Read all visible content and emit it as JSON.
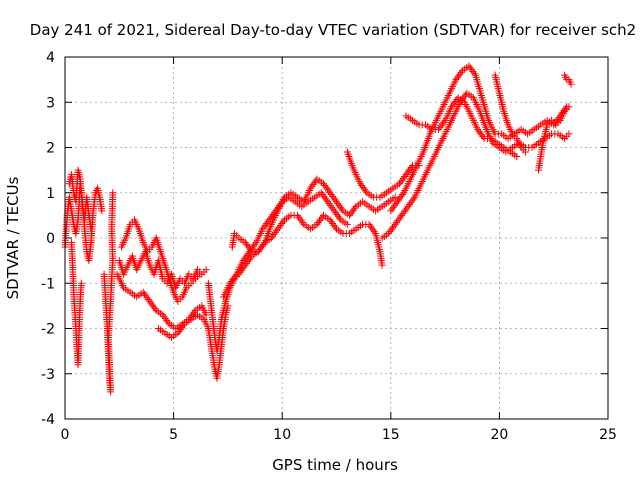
{
  "chart_data": {
    "type": "scatter",
    "title": "Day 241 of 2021, Sidereal Day-to-day VTEC variation (SDTVAR) for receiver sch2",
    "xlabel": "GPS time / hours",
    "ylabel": "SDTVAR / TECUs",
    "xlim": [
      0,
      25
    ],
    "ylim": [
      -4,
      4
    ],
    "x_ticks": [
      "0",
      "5",
      "10",
      "15",
      "20",
      "25"
    ],
    "y_ticks": [
      "-4",
      "-3",
      "-2",
      "-1",
      "0",
      "1",
      "2",
      "3",
      "4"
    ],
    "grid": true,
    "marker": "+",
    "series_color": "#ff0000",
    "tracks": [
      [
        [
          0.0,
          -0.2
        ],
        [
          0.1,
          0.5
        ],
        [
          0.2,
          0.9
        ],
        [
          0.3,
          0.6
        ],
        [
          0.4,
          0.3
        ],
        [
          0.5,
          0.1
        ],
        [
          0.6,
          0.4
        ],
        [
          0.7,
          1.2
        ],
        [
          0.8,
          0.8
        ],
        [
          0.9,
          0.2
        ],
        [
          1.0,
          -0.3
        ],
        [
          1.1,
          -0.5
        ],
        [
          1.2,
          -0.1
        ],
        [
          1.3,
          0.6
        ],
        [
          1.4,
          1.0
        ],
        [
          1.5,
          1.1
        ],
        [
          1.6,
          0.9
        ],
        [
          1.7,
          0.6
        ]
      ],
      [
        [
          0.2,
          1.2
        ],
        [
          0.3,
          1.4
        ],
        [
          0.4,
          1.0
        ],
        [
          0.5,
          0.8
        ],
        [
          0.6,
          1.5
        ],
        [
          0.7,
          1.3
        ],
        [
          0.8,
          0.7
        ],
        [
          0.9,
          0.4
        ],
        [
          1.0,
          0.9
        ],
        [
          1.1,
          0.5
        ],
        [
          1.2,
          0.2
        ]
      ],
      [
        [
          0.3,
          -0.1
        ],
        [
          0.35,
          -0.6
        ],
        [
          0.4,
          -1.2
        ],
        [
          0.45,
          -1.6
        ],
        [
          0.5,
          -2.0
        ],
        [
          0.55,
          -2.4
        ],
        [
          0.6,
          -2.8
        ],
        [
          0.65,
          -2.0
        ],
        [
          0.7,
          -1.4
        ],
        [
          0.75,
          -1.0
        ]
      ],
      [
        [
          1.8,
          -0.8
        ],
        [
          1.85,
          -1.2
        ],
        [
          1.9,
          -1.6
        ],
        [
          1.95,
          -2.0
        ],
        [
          2.0,
          -2.6
        ],
        [
          2.05,
          -3.1
        ],
        [
          2.1,
          -3.4
        ],
        [
          2.0,
          -2.2
        ],
        [
          2.1,
          -1.4
        ],
        [
          2.15,
          -0.9
        ],
        [
          2.2,
          -0.5
        ],
        [
          2.15,
          0.2
        ],
        [
          2.2,
          1.0
        ]
      ],
      [
        [
          2.5,
          -0.5
        ],
        [
          2.7,
          -0.8
        ],
        [
          2.9,
          -0.6
        ],
        [
          3.1,
          -0.4
        ],
        [
          3.3,
          -0.7
        ],
        [
          3.5,
          -0.5
        ],
        [
          3.7,
          -0.3
        ],
        [
          3.9,
          -0.6
        ],
        [
          4.1,
          -0.8
        ],
        [
          4.3,
          -0.5
        ],
        [
          4.5,
          -0.9
        ],
        [
          4.7,
          -1.0
        ],
        [
          4.9,
          -0.8
        ],
        [
          5.1,
          -1.1
        ],
        [
          5.3,
          -0.9
        ],
        [
          5.5,
          -1.0
        ],
        [
          5.7,
          -0.8
        ],
        [
          5.9,
          -0.9
        ],
        [
          6.1,
          -0.7
        ],
        [
          6.3,
          -0.8
        ],
        [
          6.5,
          -0.7
        ]
      ],
      [
        [
          2.6,
          -0.2
        ],
        [
          2.8,
          0.0
        ],
        [
          3.0,
          0.3
        ],
        [
          3.2,
          0.4
        ],
        [
          3.4,
          0.2
        ],
        [
          3.6,
          -0.1
        ],
        [
          3.8,
          -0.3
        ],
        [
          4.0,
          -0.2
        ],
        [
          4.2,
          0.0
        ],
        [
          4.4,
          -0.3
        ],
        [
          4.6,
          -0.6
        ],
        [
          4.8,
          -0.9
        ],
        [
          5.0,
          -1.2
        ],
        [
          5.2,
          -1.4
        ],
        [
          5.4,
          -1.3
        ],
        [
          5.6,
          -1.1
        ],
        [
          5.8,
          -1.0
        ],
        [
          6.0,
          -0.9
        ],
        [
          6.2,
          -0.8
        ]
      ],
      [
        [
          2.4,
          -0.8
        ],
        [
          2.7,
          -1.1
        ],
        [
          3.0,
          -1.2
        ],
        [
          3.3,
          -1.3
        ],
        [
          3.6,
          -1.2
        ],
        [
          3.9,
          -1.4
        ],
        [
          4.2,
          -1.6
        ],
        [
          4.5,
          -1.7
        ],
        [
          4.8,
          -1.9
        ],
        [
          5.1,
          -2.0
        ],
        [
          5.4,
          -1.9
        ],
        [
          5.7,
          -1.8
        ],
        [
          6.0,
          -1.6
        ],
        [
          6.3,
          -1.5
        ],
        [
          6.5,
          -1.7
        ]
      ],
      [
        [
          4.3,
          -2.0
        ],
        [
          4.6,
          -2.1
        ],
        [
          4.9,
          -2.2
        ],
        [
          5.2,
          -2.1
        ],
        [
          5.5,
          -1.9
        ],
        [
          5.8,
          -1.8
        ],
        [
          6.1,
          -1.7
        ],
        [
          6.4,
          -1.8
        ],
        [
          6.6,
          -2.0
        ],
        [
          6.7,
          -2.3
        ],
        [
          6.8,
          -2.6
        ],
        [
          6.9,
          -2.9
        ],
        [
          7.0,
          -3.1
        ],
        [
          7.1,
          -2.8
        ],
        [
          7.2,
          -2.4
        ],
        [
          7.3,
          -2.0
        ],
        [
          7.4,
          -1.7
        ],
        [
          7.5,
          -1.5
        ]
      ],
      [
        [
          6.6,
          -1.0
        ],
        [
          6.7,
          -1.4
        ],
        [
          6.8,
          -1.8
        ],
        [
          6.9,
          -2.2
        ],
        [
          7.0,
          -2.5
        ],
        [
          7.1,
          -2.2
        ],
        [
          7.2,
          -1.8
        ],
        [
          7.4,
          -1.4
        ],
        [
          7.6,
          -1.1
        ],
        [
          7.8,
          -0.9
        ],
        [
          8.0,
          -0.8
        ],
        [
          8.3,
          -0.6
        ],
        [
          8.6,
          -0.4
        ],
        [
          8.9,
          -0.3
        ],
        [
          9.2,
          -0.1
        ],
        [
          9.5,
          0.0
        ],
        [
          9.8,
          0.2
        ],
        [
          10.1,
          0.4
        ],
        [
          10.4,
          0.5
        ],
        [
          10.7,
          0.5
        ],
        [
          11.0,
          0.3
        ],
        [
          11.3,
          0.2
        ],
        [
          11.6,
          0.3
        ],
        [
          11.9,
          0.5
        ],
        [
          12.2,
          0.4
        ],
        [
          12.5,
          0.2
        ],
        [
          12.8,
          0.1
        ],
        [
          13.1,
          0.1
        ],
        [
          13.4,
          0.2
        ],
        [
          13.7,
          0.3
        ],
        [
          14.0,
          0.3
        ],
        [
          14.3,
          0.1
        ],
        [
          14.5,
          -0.3
        ],
        [
          14.6,
          -0.6
        ]
      ],
      [
        [
          7.3,
          -1.3
        ],
        [
          7.6,
          -1.0
        ],
        [
          7.9,
          -0.8
        ],
        [
          8.2,
          -0.5
        ],
        [
          8.5,
          -0.3
        ],
        [
          8.8,
          -0.1
        ],
        [
          9.1,
          0.2
        ],
        [
          9.4,
          0.4
        ],
        [
          9.7,
          0.6
        ],
        [
          10.0,
          0.8
        ],
        [
          10.3,
          0.9
        ],
        [
          10.6,
          0.8
        ],
        [
          10.9,
          0.7
        ],
        [
          11.2,
          0.8
        ],
        [
          11.5,
          0.9
        ],
        [
          11.8,
          1.0
        ],
        [
          12.1,
          0.8
        ],
        [
          12.4,
          0.6
        ],
        [
          12.7,
          0.4
        ],
        [
          13.0,
          0.3
        ]
      ],
      [
        [
          7.7,
          -0.2
        ],
        [
          7.8,
          0.1
        ],
        [
          8.0,
          0.0
        ],
        [
          8.3,
          -0.1
        ],
        [
          8.6,
          -0.3
        ],
        [
          8.9,
          -0.3
        ],
        [
          9.2,
          -0.1
        ],
        [
          9.5,
          0.3
        ],
        [
          9.8,
          0.6
        ],
        [
          10.1,
          0.9
        ],
        [
          10.4,
          1.0
        ],
        [
          10.7,
          0.9
        ],
        [
          11.0,
          0.8
        ],
        [
          11.3,
          1.1
        ],
        [
          11.6,
          1.3
        ],
        [
          11.9,
          1.2
        ],
        [
          12.2,
          1.0
        ],
        [
          12.5,
          0.8
        ],
        [
          12.8,
          0.6
        ],
        [
          13.1,
          0.5
        ],
        [
          13.4,
          0.7
        ],
        [
          13.7,
          0.8
        ],
        [
          14.0,
          0.7
        ],
        [
          14.3,
          0.6
        ],
        [
          14.6,
          0.7
        ],
        [
          14.9,
          0.8
        ],
        [
          15.2,
          0.9
        ]
      ],
      [
        [
          13.0,
          1.9
        ],
        [
          13.3,
          1.5
        ],
        [
          13.6,
          1.2
        ],
        [
          13.9,
          1.0
        ],
        [
          14.2,
          0.9
        ],
        [
          14.5,
          0.9
        ],
        [
          14.8,
          1.0
        ],
        [
          15.1,
          1.1
        ],
        [
          15.4,
          1.2
        ],
        [
          15.7,
          1.4
        ],
        [
          16.0,
          1.6
        ],
        [
          16.3,
          1.6
        ]
      ],
      [
        [
          14.6,
          0.0
        ],
        [
          14.9,
          0.1
        ],
        [
          15.2,
          0.3
        ],
        [
          15.5,
          0.5
        ],
        [
          15.8,
          0.7
        ],
        [
          16.1,
          0.9
        ],
        [
          16.4,
          1.2
        ],
        [
          16.7,
          1.5
        ],
        [
          17.0,
          1.8
        ],
        [
          17.3,
          2.1
        ],
        [
          17.6,
          2.4
        ],
        [
          17.9,
          2.7
        ],
        [
          18.2,
          3.0
        ],
        [
          18.5,
          3.2
        ],
        [
          18.8,
          3.1
        ],
        [
          19.1,
          2.8
        ],
        [
          19.4,
          2.4
        ],
        [
          19.7,
          2.1
        ],
        [
          20.0,
          2.0
        ],
        [
          20.3,
          1.9
        ],
        [
          20.6,
          2.0
        ],
        [
          20.9,
          2.1
        ],
        [
          21.2,
          2.0
        ],
        [
          21.5,
          2.0
        ],
        [
          21.8,
          2.1
        ],
        [
          22.1,
          2.2
        ],
        [
          22.4,
          2.3
        ],
        [
          22.7,
          2.3
        ],
        [
          23.0,
          2.2
        ],
        [
          23.2,
          2.3
        ]
      ],
      [
        [
          15.0,
          0.6
        ],
        [
          15.3,
          0.8
        ],
        [
          15.6,
          1.0
        ],
        [
          15.9,
          1.3
        ],
        [
          16.2,
          1.6
        ],
        [
          16.5,
          1.9
        ],
        [
          16.8,
          2.3
        ],
        [
          17.1,
          2.6
        ],
        [
          17.4,
          2.9
        ],
        [
          17.7,
          3.2
        ],
        [
          18.0,
          3.5
        ],
        [
          18.3,
          3.7
        ],
        [
          18.6,
          3.8
        ],
        [
          18.9,
          3.6
        ],
        [
          19.2,
          3.1
        ],
        [
          19.5,
          2.6
        ],
        [
          19.8,
          2.3
        ],
        [
          20.1,
          2.3
        ],
        [
          20.4,
          2.2
        ],
        [
          20.7,
          2.3
        ],
        [
          21.0,
          2.4
        ],
        [
          21.3,
          2.3
        ],
        [
          21.6,
          2.4
        ],
        [
          21.9,
          2.5
        ],
        [
          22.2,
          2.6
        ],
        [
          22.5,
          2.5
        ],
        [
          22.8,
          2.7
        ],
        [
          23.1,
          2.9
        ]
      ],
      [
        [
          15.7,
          2.7
        ],
        [
          16.0,
          2.6
        ],
        [
          16.3,
          2.5
        ],
        [
          16.6,
          2.5
        ],
        [
          16.9,
          2.4
        ],
        [
          17.2,
          2.4
        ],
        [
          17.5,
          2.6
        ],
        [
          17.8,
          2.9
        ],
        [
          18.1,
          3.1
        ],
        [
          18.4,
          3.0
        ],
        [
          18.7,
          2.7
        ],
        [
          19.0,
          2.4
        ],
        [
          19.3,
          2.2
        ],
        [
          19.6,
          2.2
        ],
        [
          19.9,
          2.1
        ],
        [
          20.2,
          2.0
        ],
        [
          20.5,
          1.9
        ],
        [
          20.8,
          1.8
        ]
      ],
      [
        [
          19.8,
          3.6
        ],
        [
          20.0,
          3.2
        ],
        [
          20.2,
          2.8
        ],
        [
          20.4,
          2.5
        ],
        [
          20.6,
          2.3
        ],
        [
          20.8,
          2.2
        ],
        [
          21.0,
          2.0
        ],
        [
          21.2,
          1.9
        ]
      ],
      [
        [
          21.8,
          1.5
        ],
        [
          21.9,
          1.8
        ],
        [
          22.0,
          2.1
        ],
        [
          22.1,
          2.3
        ],
        [
          22.2,
          2.5
        ],
        [
          22.4,
          2.6
        ],
        [
          22.6,
          2.5
        ],
        [
          22.8,
          2.6
        ],
        [
          23.0,
          2.8
        ],
        [
          23.2,
          2.9
        ]
      ],
      [
        [
          23.0,
          3.6
        ],
        [
          23.1,
          3.5
        ],
        [
          23.2,
          3.5
        ],
        [
          23.3,
          3.4
        ]
      ]
    ]
  }
}
